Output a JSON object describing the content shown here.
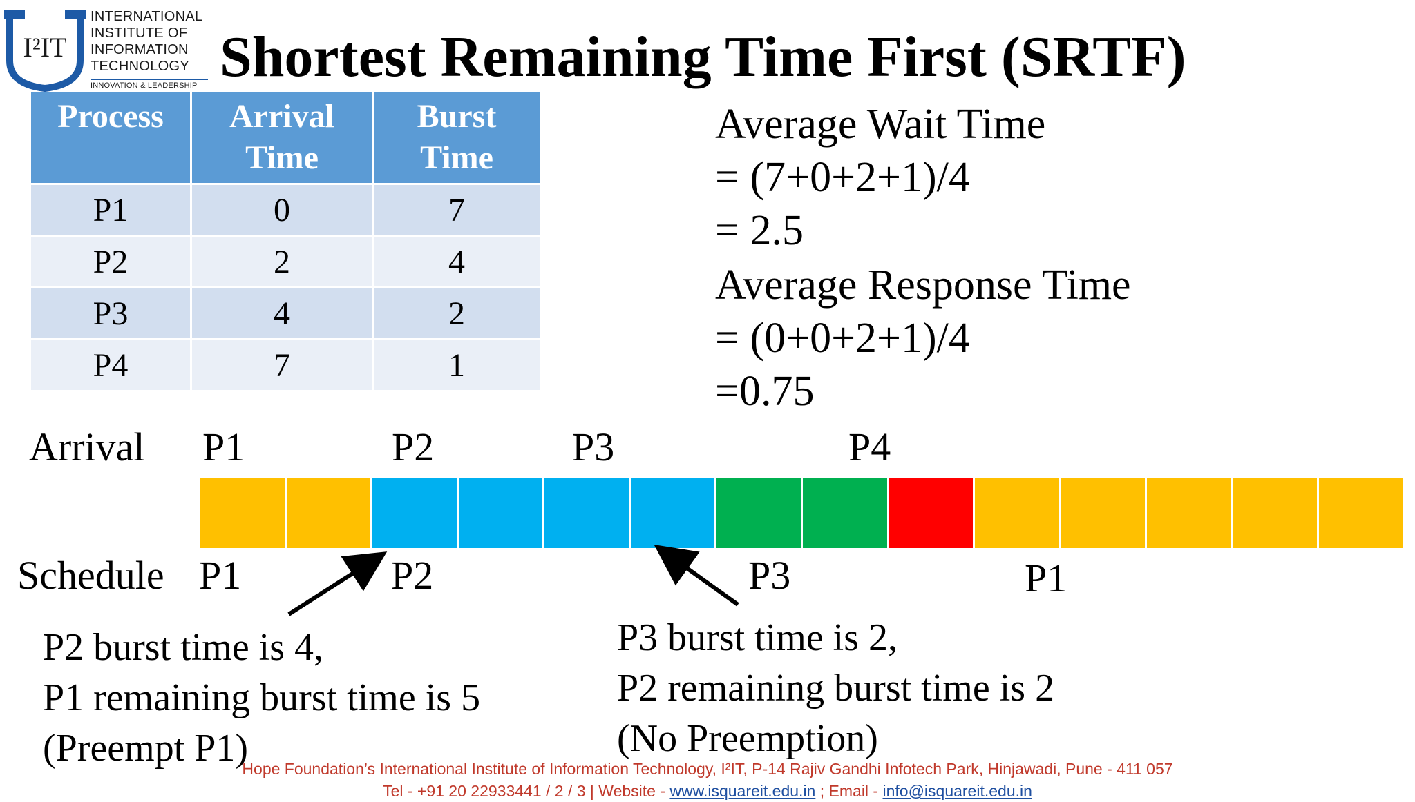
{
  "logo": {
    "mark": "I²IT",
    "lines": [
      "INTERNATIONAL",
      "INSTITUTE OF",
      "INFORMATION",
      "TECHNOLOGY"
    ],
    "tagline": "INNOVATION & LEADERSHIP"
  },
  "title": "Shortest Remaining Time First (SRTF)",
  "table": {
    "headers": [
      [
        "Process"
      ],
      [
        "Arrival",
        "Time"
      ],
      [
        "Burst",
        "Time"
      ]
    ],
    "rows": [
      [
        "P1",
        "0",
        "7"
      ],
      [
        "P2",
        "2",
        "4"
      ],
      [
        "P3",
        "4",
        "2"
      ],
      [
        "P4",
        "7",
        "1"
      ]
    ]
  },
  "averages": {
    "wait_label": "Average Wait Time",
    "wait_formula": "= (7+0+2+1)/4",
    "wait_result": "= 2.5",
    "response_label": "Average Response Time",
    "response_formula": "= (0+0+2+1)/4",
    "response_result": "=0.75"
  },
  "timeline": {
    "arrival_label": "Arrival",
    "arrival_markers": [
      "P1",
      "P2",
      "P3",
      "P4"
    ],
    "schedule_label": "Schedule",
    "schedule_markers": [
      "P1",
      "P2",
      "P3",
      "P1"
    ],
    "colors": {
      "P1": "#ffc000",
      "P2": "#00b0f0",
      "P3": "#00b050",
      "P4": "#ff0000"
    },
    "gantt": [
      "P1",
      "P1",
      "P2",
      "P2",
      "P2",
      "P2",
      "P3",
      "P3",
      "P4",
      "P1",
      "P1",
      "P1",
      "P1",
      "P1"
    ]
  },
  "notes": {
    "left": [
      "P2 burst time is 4,",
      "P1 remaining burst time is 5",
      "(Preempt P1)"
    ],
    "right": [
      "P3 burst time is 2,",
      "P2 remaining burst time is 2",
      "(No Preemption)"
    ]
  },
  "footer": {
    "line1": "Hope Foundation’s International Institute of Information Technology, I²IT, P-14 Rajiv Gandhi Infotech Park, Hinjawadi, Pune - 411 057",
    "tel": "Tel - +91 20 22933441 / 2 / 3  |  Website - ",
    "website": "www.isquareit.edu.in",
    "email_prefix": " ; Email - ",
    "email": "info@isquareit.edu.in"
  }
}
